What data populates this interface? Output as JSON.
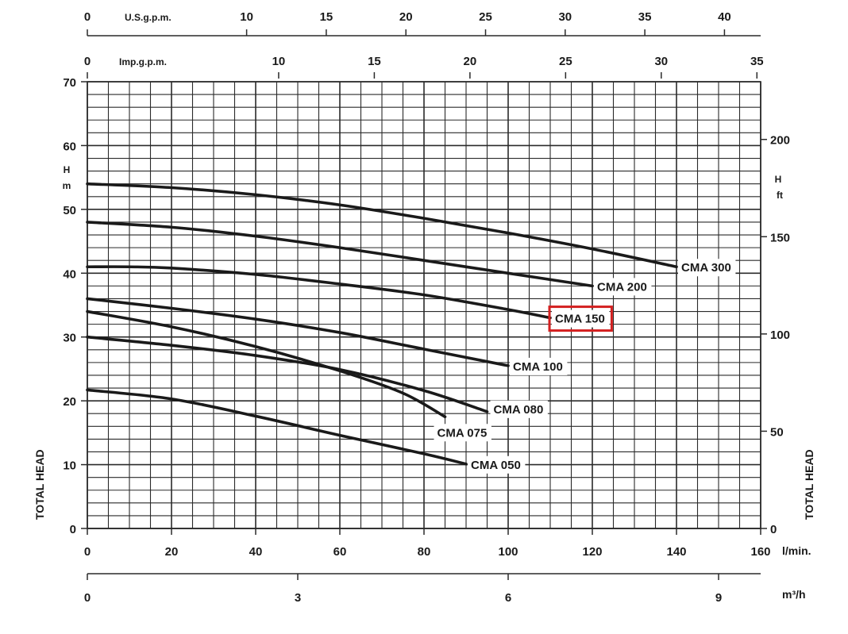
{
  "chart_data": {
    "type": "line",
    "title": "",
    "xlabel": "l/min.",
    "ylabel": "TOTAL HEAD",
    "y_unit_left": "H\nm",
    "y_unit_right": "H\nft",
    "xlim": [
      0,
      160
    ],
    "ylim": [
      0,
      70
    ],
    "grid": true,
    "x_ticks": [
      "0",
      "20",
      "40",
      "60",
      "80",
      "100",
      "120",
      "140",
      "160"
    ],
    "y_ticks": [
      "0",
      "10",
      "20",
      "30",
      "40",
      "50",
      "60",
      "70"
    ],
    "top_axis_usgpm": {
      "label": "U.S.g.p.m.",
      "ticks": [
        "0",
        "10",
        "15",
        "20",
        "25",
        "30",
        "35",
        "40"
      ]
    },
    "top_axis_impgpm": {
      "label": "Imp.g.p.m.",
      "ticks": [
        "0",
        "10",
        "15",
        "20",
        "25",
        "30",
        "35"
      ]
    },
    "right_axis_ft": {
      "label": "TOTAL HEAD",
      "ticks": [
        "0",
        "50",
        "100",
        "150",
        "200"
      ]
    },
    "bottom_axis_m3h": {
      "label": "m³/h",
      "ticks": [
        "0",
        "3",
        "6",
        "9"
      ]
    },
    "series": [
      {
        "name": "CMA 300",
        "x": [
          0,
          20,
          40,
          60,
          80,
          100,
          120,
          140
        ],
        "y": [
          54,
          53.4,
          52.3,
          50.7,
          48.6,
          46.3,
          43.8,
          41
        ]
      },
      {
        "name": "CMA 200",
        "x": [
          0,
          20,
          40,
          60,
          80,
          100,
          120
        ],
        "y": [
          48,
          47.2,
          45.8,
          44,
          42,
          40,
          38
        ]
      },
      {
        "name": "CMA 150",
        "x": [
          0,
          10,
          20,
          40,
          60,
          80,
          100,
          110
        ],
        "y": [
          41,
          41,
          40.8,
          39.8,
          38.3,
          36.6,
          34.3,
          33
        ]
      },
      {
        "name": "CMA 100",
        "x": [
          0,
          20,
          40,
          60,
          80,
          100
        ],
        "y": [
          36,
          34.5,
          32.8,
          30.7,
          28.1,
          25.5
        ]
      },
      {
        "name": "CMA 080",
        "x": [
          0,
          20,
          40,
          60,
          80,
          95
        ],
        "y": [
          30,
          28.7,
          27.1,
          24.9,
          21.6,
          18.3
        ]
      },
      {
        "name": "CMA 075",
        "x": [
          0,
          20,
          40,
          60,
          75,
          85
        ],
        "y": [
          34,
          31.6,
          28.5,
          24.7,
          21.2,
          17.5
        ]
      },
      {
        "name": "CMA 050",
        "x": [
          0,
          20,
          40,
          60,
          80,
          90
        ],
        "y": [
          21.7,
          20.3,
          17.6,
          14.6,
          11.7,
          10.1
        ]
      }
    ],
    "highlight": "CMA 150",
    "colors": {
      "curve": "#1a1a1a",
      "grid": "#2a2a2a",
      "highlight_box": "#d42020"
    }
  }
}
